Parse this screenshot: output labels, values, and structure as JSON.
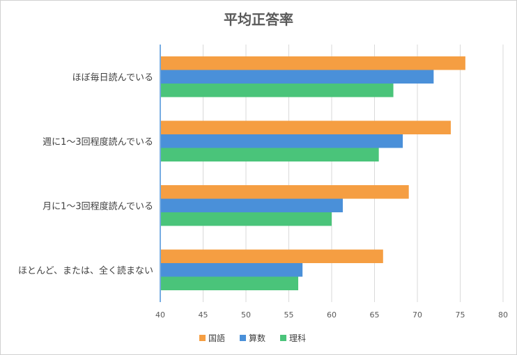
{
  "chart_data": {
    "type": "bar",
    "orientation": "horizontal",
    "title": "平均正答率",
    "categories": [
      "ほぼ毎日読んでいる",
      "週に1～3回程度読んでいる",
      "月に1～3回程度読んでいる",
      "ほとんど、または、全く読まない"
    ],
    "series": [
      {
        "name": "国語",
        "values": [
          75.6,
          73.9,
          69.0,
          66.0
        ],
        "color": "#f59e42"
      },
      {
        "name": "算数",
        "values": [
          71.9,
          68.3,
          61.3,
          56.6
        ],
        "color": "#4a90d9"
      },
      {
        "name": "理科",
        "values": [
          67.2,
          65.5,
          60.0,
          56.1
        ],
        "color": "#4ac47a"
      }
    ],
    "xlim": [
      40,
      80
    ],
    "xticks": [
      "40",
      "45",
      "50",
      "55",
      "60",
      "65",
      "70",
      "75",
      "80"
    ],
    "xlabel": "",
    "ylabel": "",
    "grid": true,
    "legend": "bottom-center"
  }
}
